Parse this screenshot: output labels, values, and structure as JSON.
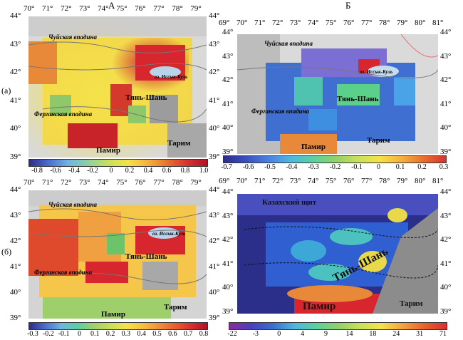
{
  "columns": {
    "a": "А",
    "b": "Б"
  },
  "rows": {
    "a": "(а)",
    "b": "(б)"
  },
  "left_axes": {
    "lon": [
      "70°",
      "71°",
      "72°",
      "73°",
      "74°",
      "75°",
      "76°",
      "77°",
      "78°",
      "79°"
    ],
    "lat": [
      "44°",
      "43°",
      "42°",
      "41°",
      "40°",
      "39°"
    ]
  },
  "right_axes": {
    "lon": [
      "69°",
      "70°",
      "71°",
      "72°",
      "73°",
      "74°",
      "75°",
      "76°",
      "77°",
      "78°",
      "79°",
      "80°",
      "81°"
    ],
    "lat": [
      "44°",
      "43°",
      "42°",
      "41°",
      "40°",
      "39°"
    ]
  },
  "panels": {
    "p1": {
      "labels": {
        "chuy": "Чуйская впадина",
        "issyk": "оз. Иссык-Куль",
        "tianshan": "Тянь-Шань",
        "fergana": "Ферганская впадина",
        "tarim": "Тарим",
        "pamir": "Памир"
      },
      "colorbar": {
        "ticks": [
          "-0.8",
          "-0.6",
          "-0.4",
          "-0.2",
          "0",
          "0.2",
          "0.4",
          "0.6",
          "0.8",
          "1.0"
        ],
        "min": -0.9,
        "max": 1.0
      }
    },
    "p2": {
      "labels": {
        "chuy": "Чуйская впадина",
        "issyk": "оз. Иссык-Куль",
        "tianshan": "Тянь-Шань",
        "fergana": "Ферганская впадина",
        "tarim": "Тарим",
        "pamir": "Памир"
      },
      "colorbar": {
        "ticks": [
          "-0.7",
          "-0.6",
          "-0.5",
          "-0.4",
          "-0.3",
          "-0.2",
          "-0.1",
          "0",
          "0.1",
          "0.2",
          "0.3"
        ],
        "min": -0.7,
        "max": 0.3
      }
    },
    "p3": {
      "labels": {
        "chuy": "Чуйская впадина",
        "issyk": "оз. Иссык-Куль",
        "tianshan": "Тянь-Шань",
        "fergana": "Ферганская впадина",
        "tarim": "Тарим",
        "pamir": "Памир"
      },
      "colorbar": {
        "ticks": [
          "-0.3",
          "-0.2",
          "-0.1",
          "0",
          "0.1",
          "0.2",
          "0.3",
          "0.4",
          "0.5",
          "0.6",
          "0.7",
          "0.8"
        ],
        "min": -0.3,
        "max": 0.8
      }
    },
    "p4": {
      "labels": {
        "kazakh": "Казахский щит",
        "tianshan": "Тянь-Шань",
        "tarim": "Тарим",
        "pamir": "Памир"
      },
      "colorbar": {
        "ticks": [
          "-22",
          "-3",
          "0",
          "4",
          "9",
          "14",
          "18",
          "24",
          "31",
          "71"
        ],
        "min": -22,
        "max": 71
      }
    }
  }
}
